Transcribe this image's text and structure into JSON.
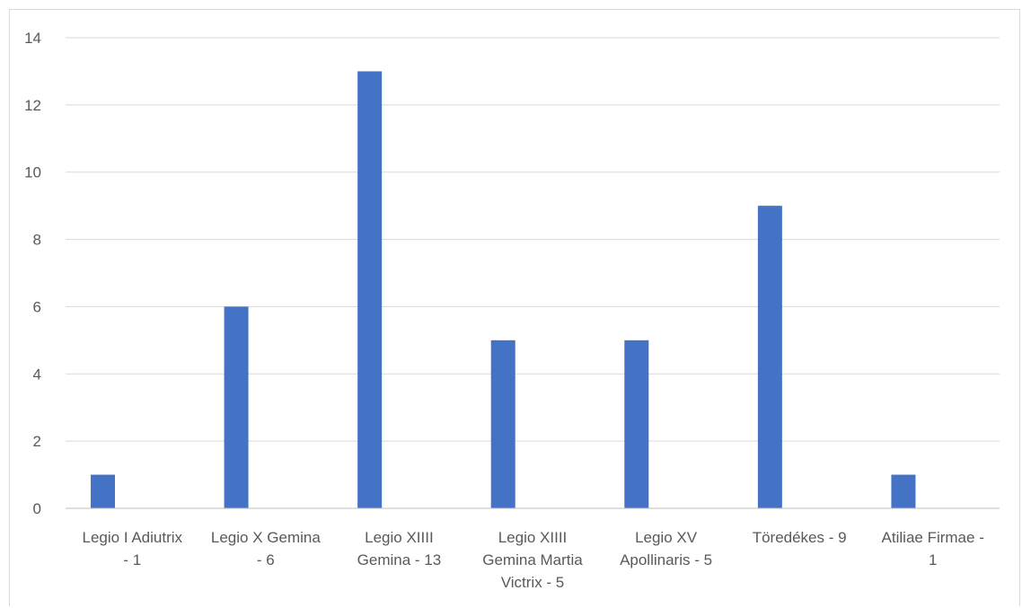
{
  "chart_data": {
    "type": "bar",
    "categories": [
      [
        "Legio I Adiutrix",
        "- 1"
      ],
      [
        "Legio X Gemina",
        "- 6"
      ],
      [
        "Legio XIIII",
        "Gemina - 13"
      ],
      [
        "Legio XIIII",
        "Gemina Martia",
        "Victrix - 5"
      ],
      [
        "Legio XV",
        "Apollinaris - 5"
      ],
      [
        "Töredékes - 9"
      ],
      [
        "Atiliae Firmae -",
        "1"
      ]
    ],
    "values": [
      1,
      6,
      13,
      5,
      5,
      9,
      1
    ],
    "ylim": [
      0,
      14
    ],
    "yticks": [
      "0",
      "2",
      "4",
      "6",
      "8",
      "10",
      "12",
      "14"
    ],
    "grid": true,
    "colors": {
      "bar": "#4472c4",
      "grid": "#d9d9d9",
      "axis": "#bfbfbf"
    }
  }
}
